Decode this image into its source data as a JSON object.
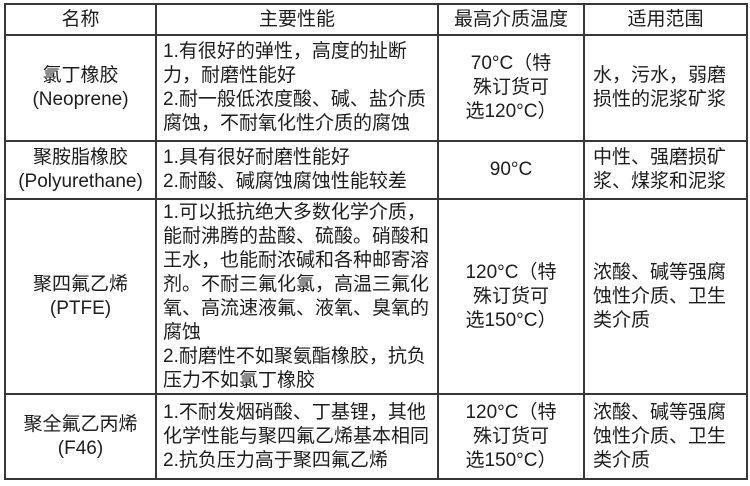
{
  "table": {
    "headers": [
      {
        "label": "名称"
      },
      {
        "label": "主要性能"
      },
      {
        "label": "最高介质温度"
      },
      {
        "label": "适用范围"
      }
    ],
    "rows": [
      {
        "name_cn": "氯丁橡胶",
        "name_en": "(Neoprene)",
        "performance": [
          "1.有很好的弹性，高度的扯断力，耐磨性能好",
          "2.耐一般低浓度酸、碱、盐介质腐蚀，不耐氧化性介质的腐蚀"
        ],
        "max_temp": "70°C（特殊订货可选120°C）",
        "range": "水，污水，弱磨损性的泥浆矿浆"
      },
      {
        "name_cn": "聚胺脂橡胶",
        "name_en": "(Polyurethane)",
        "performance": [
          "1.具有很好耐磨性能好",
          "2.耐酸、碱腐蚀腐蚀性能较差"
        ],
        "max_temp": "90°C",
        "range": "中性、强磨损矿浆、煤浆和泥浆"
      },
      {
        "name_cn": "聚四氟乙烯",
        "name_en": "(PTFE)",
        "performance": [
          "1.可以抵抗绝大多数化学介质，能耐沸腾的盐酸、硫酸。硝酸和王水，也能耐浓碱和各种邮寄溶剂。不耐三氟化氯，高温三氟化氧、高流速液氟、液氧、臭氧的腐蚀",
          "2.耐磨性不如聚氨酯橡胶，抗负压力不如氯丁橡胶"
        ],
        "max_temp": "120°C（特殊订货可选150°C）",
        "range": "浓酸、碱等强腐蚀性介质、卫生类介质"
      },
      {
        "name_cn": "聚全氟乙丙烯",
        "name_en": "(F46)",
        "performance": [
          "1.不耐发烟硝酸、丁基锂，其他化学性能与聚四氟乙烯基本相同",
          "2.抗负压力高于聚四氟乙烯"
        ],
        "max_temp": "120°C（特殊订货可选150°C）",
        "range": "浓酸、碱等强腐蚀性介质、卫生类介质"
      }
    ]
  }
}
